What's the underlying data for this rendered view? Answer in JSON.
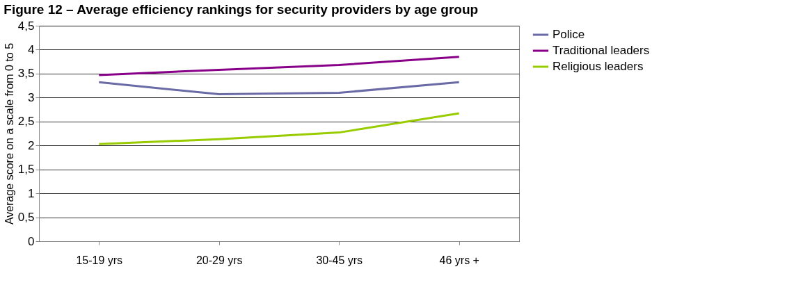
{
  "chart_data": {
    "type": "line",
    "title": "Figure 12 – Average efficiency rankings for security providers by age group",
    "ylabel": "Average score on a scale from 0 to 5",
    "categories": [
      "15-19 yrs",
      "20-29 yrs",
      "30-45 yrs",
      "46 yrs +"
    ],
    "series": [
      {
        "name": "Police",
        "color": "#6a6aa6",
        "values": [
          3.32,
          3.07,
          3.1,
          3.32
        ]
      },
      {
        "name": "Traditional leaders",
        "color": "#880088",
        "values": [
          3.47,
          3.58,
          3.68,
          3.85
        ]
      },
      {
        "name": "Religious leaders",
        "color": "#99cc00",
        "values": [
          2.03,
          2.13,
          2.27,
          2.67
        ]
      }
    ],
    "ylim": [
      0,
      4.5
    ],
    "yticks": [
      0,
      {
        "value": 0.5,
        "label": "0,5"
      },
      1,
      {
        "value": 1.5,
        "label": "1,5"
      },
      2,
      {
        "value": 2.5,
        "label": "2,5"
      },
      3,
      {
        "value": 3.5,
        "label": "3,5"
      },
      4,
      {
        "value": 4.5,
        "label": "4,5"
      }
    ],
    "grid": "y",
    "legend": "right",
    "marker": "none",
    "line_style": "solid"
  }
}
